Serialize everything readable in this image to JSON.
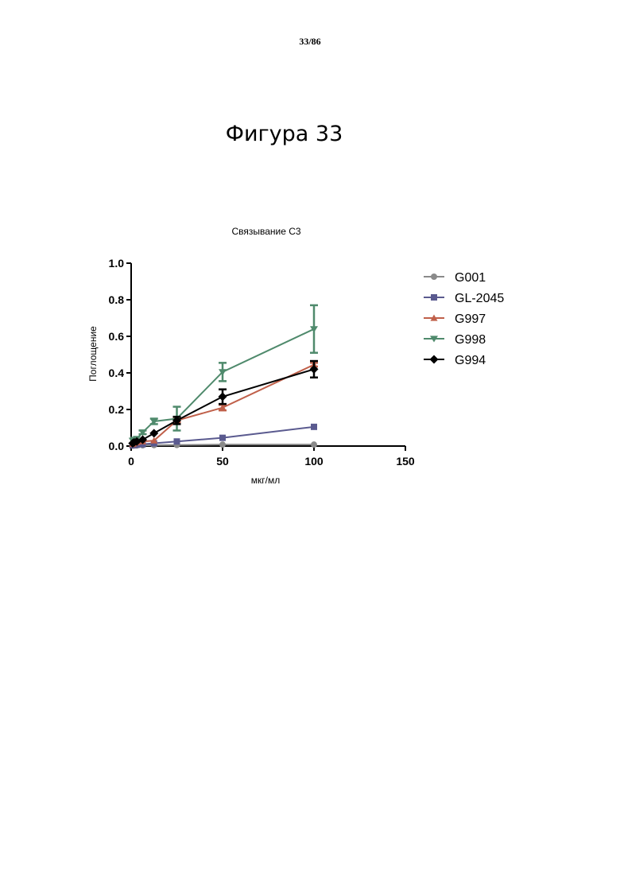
{
  "page_number": "33/86",
  "figure_title": "Фигура 33",
  "chart_data": {
    "type": "line",
    "title": "Связывание С3",
    "xlabel": "мкг/мл",
    "ylabel": "Поглощение",
    "xlim": [
      0,
      150
    ],
    "ylim": [
      0,
      1.0
    ],
    "xticks": [
      0,
      50,
      100,
      150
    ],
    "xtick_labels": [
      "0",
      "50",
      "100",
      "150"
    ],
    "yticks": [
      0,
      0.2,
      0.4,
      0.6,
      0.8,
      1.0
    ],
    "ytick_labels": [
      "0.0",
      "0.2",
      "0.4",
      "0.6",
      "0.8",
      "1.0"
    ],
    "grid": false,
    "legend_position": "right",
    "series": [
      {
        "name": "G001",
        "color": "#8a8a8a",
        "marker": "circle",
        "x": [
          0.8,
          1.6,
          3.1,
          6.3,
          12.5,
          25,
          50,
          100
        ],
        "y": [
          0.002,
          0.003,
          0.003,
          0.004,
          0.005,
          0.006,
          0.008,
          0.008
        ],
        "err": [
          0,
          0,
          0,
          0,
          0,
          0,
          0,
          0
        ]
      },
      {
        "name": "GL-2045",
        "color": "#5a5a8f",
        "marker": "square",
        "x": [
          0.8,
          1.6,
          3.1,
          6.3,
          12.5,
          25,
          50,
          100
        ],
        "y": [
          0.004,
          0.005,
          0.007,
          0.01,
          0.015,
          0.025,
          0.045,
          0.105
        ],
        "err": [
          0,
          0,
          0,
          0,
          0,
          0,
          0,
          0
        ]
      },
      {
        "name": "G997",
        "color": "#c0604a",
        "marker": "triangle-up",
        "x": [
          0.8,
          1.6,
          3.1,
          6.3,
          12.5,
          25,
          50,
          100
        ],
        "y": [
          0.01,
          0.015,
          0.02,
          0.025,
          0.03,
          0.14,
          0.21,
          0.445
        ],
        "err": [
          0,
          0,
          0,
          0,
          0,
          0.01,
          0.015,
          0.01
        ]
      },
      {
        "name": "G998",
        "color": "#4f8a6c",
        "marker": "triangle-down",
        "x": [
          0.8,
          1.6,
          3.1,
          6.3,
          12.5,
          25,
          50,
          100
        ],
        "y": [
          0.03,
          0.035,
          0.04,
          0.075,
          0.135,
          0.15,
          0.405,
          0.64
        ],
        "err": [
          0,
          0,
          0,
          0.01,
          0.015,
          0.065,
          0.05,
          0.13
        ]
      },
      {
        "name": "G994",
        "color": "#000000",
        "marker": "diamond",
        "x": [
          0.8,
          1.6,
          3.1,
          6.3,
          12.5,
          25,
          50,
          100
        ],
        "y": [
          0.015,
          0.02,
          0.025,
          0.035,
          0.07,
          0.14,
          0.27,
          0.42
        ],
        "err": [
          0,
          0,
          0,
          0,
          0,
          0.02,
          0.04,
          0.045
        ]
      }
    ]
  }
}
